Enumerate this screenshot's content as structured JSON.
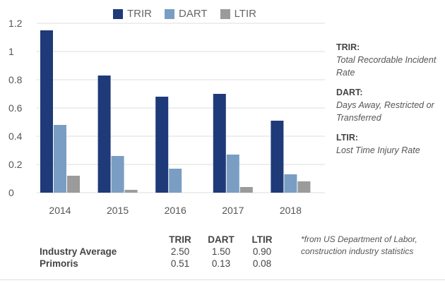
{
  "colors": {
    "TRIR": "#1f3a78",
    "DART": "#7a9ec3",
    "LTIR": "#9b9b9b",
    "grid": "#dcdcdc",
    "axis_text": "#555555"
  },
  "legend": [
    {
      "name": "TRIR",
      "color": "#1f3a78"
    },
    {
      "name": "DART",
      "color": "#7a9ec3"
    },
    {
      "name": "LTIR",
      "color": "#9b9b9b"
    }
  ],
  "definitions": [
    {
      "term": "TRIR:",
      "desc": "Total Recordable Incident Rate"
    },
    {
      "term": "DART:",
      "desc": "Days Away, Restricted or Transferred"
    },
    {
      "term": "LTIR:",
      "desc": "Lost Time Injury Rate"
    }
  ],
  "stats": {
    "headers": [
      "TRIR",
      "DART",
      "LTIR"
    ],
    "rows": [
      {
        "label": "Industry Average",
        "values": [
          "2.50",
          "1.50",
          "0.90"
        ]
      },
      {
        "label": "Primoris",
        "values": [
          "0.51",
          "0.13",
          "0.08"
        ]
      }
    ]
  },
  "footnote": "*from US Department of Labor, construction industry statistics",
  "chart_data": {
    "type": "bar",
    "categories": [
      "2014",
      "2015",
      "2016",
      "2017",
      "2018"
    ],
    "series": [
      {
        "name": "TRIR",
        "values": [
          1.15,
          0.83,
          0.68,
          0.7,
          0.51
        ]
      },
      {
        "name": "DART",
        "values": [
          0.48,
          0.26,
          0.17,
          0.27,
          0.13
        ]
      },
      {
        "name": "LTIR",
        "values": [
          0.12,
          0.02,
          0.0,
          0.04,
          0.08
        ]
      }
    ],
    "yticks": [
      "0",
      "0.2",
      "0.4",
      "0.6",
      "0.8",
      "1",
      "1.2"
    ],
    "ylim": [
      0,
      1.2
    ],
    "grid": true,
    "legend_position": "top"
  }
}
